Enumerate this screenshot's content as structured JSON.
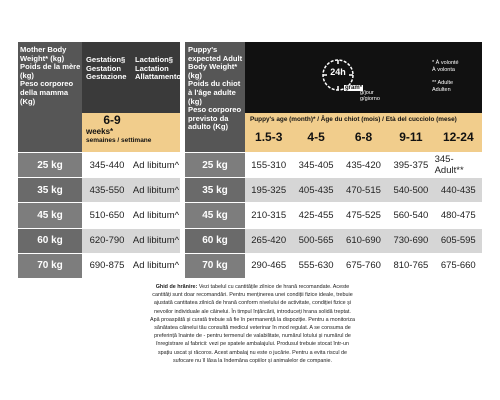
{
  "mother_table": {
    "header": {
      "weight": [
        "Mother Body Weight* (kg)",
        "Poids de la mère (kg)",
        "Peso corporeo della mamma (Kg)"
      ],
      "gestation": [
        "Gestation§",
        "Gestation",
        "Gestazione"
      ],
      "lactation": [
        "Lactation§",
        "Lactation",
        "Allattamento"
      ],
      "period": "6-9",
      "period_unit": "weeks*",
      "period_translations": "semaines / settimane"
    },
    "rows": [
      [
        "25 kg",
        "345-440",
        "Ad libitum^"
      ],
      [
        "35 kg",
        "435-550",
        "Ad libitum^"
      ],
      [
        "45 kg",
        "510-650",
        "Ad libitum^"
      ],
      [
        "60 kg",
        "620-790",
        "Ad libitum^"
      ],
      [
        "70 kg",
        "690-875",
        "Ad libitum^"
      ]
    ]
  },
  "puppy_table": {
    "header": {
      "weight": [
        "Puppy's expected Adult Body Weight* (kg)",
        "Poids du chiot à l'âge adulte (kg)",
        "Peso corporeo previsto da adulto (Kg)"
      ],
      "icon": "24h",
      "unit": "gram*",
      "unit_translations": [
        "g/jour",
        "g/giorno"
      ],
      "legend": [
        "* À volonté",
        "À volonta",
        "** Adulte",
        "Adulten"
      ],
      "age_label": "Puppy's age (month)* / Âge du chiot (mois) / Età del cucciolo (mese)",
      "ages": [
        "1.5-3",
        "4-5",
        "6-8",
        "9-11",
        "12-24"
      ]
    },
    "rows": [
      [
        "25 kg",
        "155-310",
        "345-405",
        "435-420",
        "395-375",
        "345-Adult**"
      ],
      [
        "35 kg",
        "195-325",
        "405-435",
        "470-515",
        "540-500",
        "440-435"
      ],
      [
        "45 kg",
        "210-315",
        "425-455",
        "475-525",
        "560-540",
        "480-475"
      ],
      [
        "60 kg",
        "265-420",
        "500-565",
        "610-690",
        "730-690",
        "605-595"
      ],
      [
        "70 kg",
        "290-465",
        "555-630",
        "675-760",
        "810-765",
        "675-660"
      ]
    ]
  },
  "footnote": {
    "title": "Ghid de hrănire:",
    "text": "Vezi tabelul cu cantitățile zilnice de hrană recomandate. Aceste cantități sunt doar recomandări. Pentru menținerea unei condiții fizice ideale, trebuie ajustată cantitatea zilnică de hrană conform nivelului de activitate, condiției fizice și nevoilor individuale ale câinelui. În timpul înțărcării, introduceți hrana solidă treptat. Apă proaspătă și curată trebuie să fie în permanență la dispoziție. Pentru a monitoriza sănătatea câinelui tău consultă medicul veterinar în mod regulat. A se consuma de preferință înainte de - pentru termenul de valabilitate, numărul lotului și numărul de înregistrare al fabricii: vezi pe spatele ambalajului. Produsul trebuie stocat într-un spațiu uscat și răcoros. Acest ambalaj nu este o jucărie. Pentru a evita riscul de sufocare nu îl lăsa la îndemâna copiilor și animalelor de companie."
  }
}
